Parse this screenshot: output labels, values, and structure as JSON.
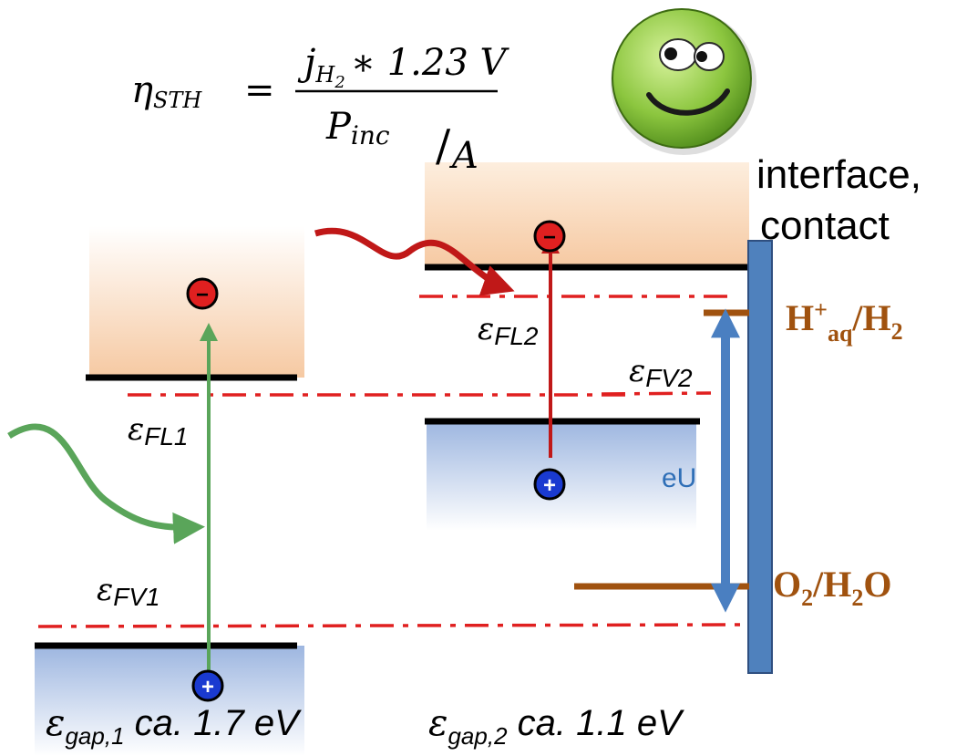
{
  "formula": {
    "lhs": "η",
    "lhs_sub": "STH",
    "equals": "=",
    "num_j": "j",
    "num_j_sub": "H",
    "num_j_subsub": "2",
    "num_rest": "∗ 1.23 V",
    "den_p": "P",
    "den_p_sub": "inc",
    "den_slash": "/",
    "den_a": "A"
  },
  "labels": {
    "interface_line1": "interface,",
    "interface_line2": "contact",
    "fl1": "ε",
    "fl1_sub": "FL1",
    "fv1": "ε",
    "fv1_sub": "FV1",
    "fl2": "ε",
    "fl2_sub": "FL2",
    "fv2": "ε",
    "fv2_sub": "FV2",
    "eu": "eU",
    "gap1_eps": "ε",
    "gap1_sub": "gap,1",
    "gap1_text": " ca. 1.7 eV",
    "gap2_eps": "ε",
    "gap2_sub": "gap,2",
    "gap2_text": " ca. 1.1 eV",
    "redox1_h": "H",
    "redox1_sup": "+",
    "redox1_sub": "aq",
    "redox1_rest": "/H",
    "redox1_sub2": "2",
    "redox2_o": "O",
    "redox2_sub1": "2",
    "redox2_mid": "/H",
    "redox2_sub2": "2",
    "redox2_end": "O",
    "electron_sign": "−",
    "hole_sign": "+"
  },
  "colors": {
    "conduction_fill": "#f6c9a2",
    "valence_fill": "#9db6e0",
    "band_edge": "#000000",
    "quasi_fermi": "#e02020",
    "green_arrow": "#5aa55a",
    "red_arrow": "#c01818",
    "blue_arrow": "#4a7fc1",
    "contact_bar": "#4f81bd",
    "redox_brown": "#a0520f",
    "electron_fill": "#e02020",
    "hole_fill": "#1a3ad0",
    "smiley_fill": "#8cc63f"
  }
}
